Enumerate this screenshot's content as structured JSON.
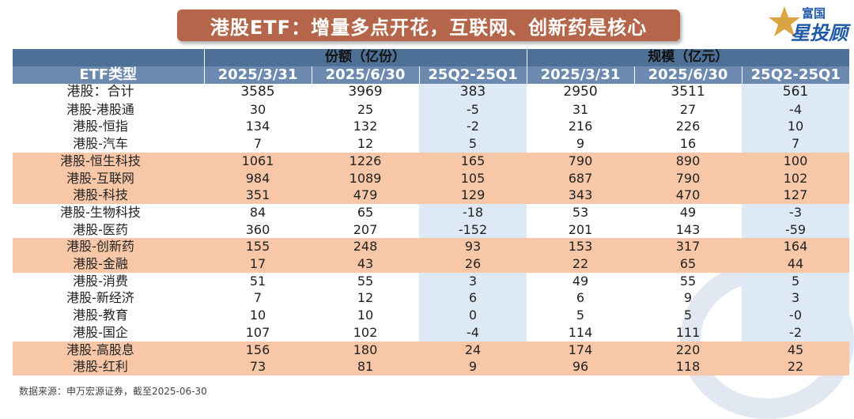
{
  "title": "港股ETF：增量多点开花，互联网、创新药是核心",
  "logo": {
    "line1": "富国",
    "line2": "星投顾"
  },
  "table": {
    "type_header": "ETF类型",
    "group_headers": [
      "份额（亿份）",
      "规模（亿元）"
    ],
    "sub_headers": [
      "2025/3/31",
      "2025/6/30",
      "25Q2-25Q1",
      "2025/3/31",
      "2025/6/30",
      "25Q2-25Q1"
    ],
    "rows": [
      {
        "label": "港股：合计",
        "values": [
          "3585",
          "3969",
          "383",
          "2950",
          "3511",
          "561"
        ],
        "highlight": false,
        "total": true
      },
      {
        "label": "港股-港股通",
        "values": [
          "30",
          "25",
          "-5",
          "31",
          "27",
          "-4"
        ],
        "highlight": false
      },
      {
        "label": "港股-恒指",
        "values": [
          "134",
          "132",
          "-2",
          "216",
          "226",
          "10"
        ],
        "highlight": false
      },
      {
        "label": "港股-汽车",
        "values": [
          "7",
          "12",
          "5",
          "9",
          "16",
          "7"
        ],
        "highlight": false
      },
      {
        "label": "港股-恒生科技",
        "values": [
          "1061",
          "1226",
          "165",
          "790",
          "890",
          "100"
        ],
        "highlight": true
      },
      {
        "label": "港股-互联网",
        "values": [
          "984",
          "1089",
          "105",
          "687",
          "790",
          "102"
        ],
        "highlight": true
      },
      {
        "label": "港股-科技",
        "values": [
          "351",
          "479",
          "129",
          "343",
          "470",
          "127"
        ],
        "highlight": true
      },
      {
        "label": "港股-生物科技",
        "values": [
          "84",
          "65",
          "-18",
          "53",
          "49",
          "-3"
        ],
        "highlight": false
      },
      {
        "label": "港股-医药",
        "values": [
          "360",
          "207",
          "-152",
          "201",
          "143",
          "-59"
        ],
        "highlight": false
      },
      {
        "label": "港股-创新药",
        "values": [
          "155",
          "248",
          "93",
          "153",
          "317",
          "164"
        ],
        "highlight": true
      },
      {
        "label": "港股-金融",
        "values": [
          "17",
          "43",
          "26",
          "22",
          "65",
          "44"
        ],
        "highlight": true
      },
      {
        "label": "港股-消费",
        "values": [
          "51",
          "55",
          "3",
          "49",
          "55",
          "5"
        ],
        "highlight": false
      },
      {
        "label": "港股-新经济",
        "values": [
          "7",
          "12",
          "6",
          "6",
          "9",
          "3"
        ],
        "highlight": false
      },
      {
        "label": "港股-教育",
        "values": [
          "10",
          "10",
          "0",
          "5",
          "5",
          "-0"
        ],
        "highlight": false
      },
      {
        "label": "港股-国企",
        "values": [
          "107",
          "102",
          "-4",
          "114",
          "111",
          "-2"
        ],
        "highlight": false
      },
      {
        "label": "港股-高股息",
        "values": [
          "156",
          "180",
          "24",
          "174",
          "220",
          "45"
        ],
        "highlight": true
      },
      {
        "label": "港股-红利",
        "values": [
          "73",
          "81",
          "9",
          "96",
          "118",
          "22"
        ],
        "highlight": true
      }
    ]
  },
  "source": "数据来源：申万宏源证券，截至2025-06-30",
  "colors": {
    "banner": "#b5664a",
    "header_dark": "#4e6f96",
    "header_light": "#6c8ab0",
    "diff_column": "#dde9f5",
    "highlight_row": "#f7c7a8"
  }
}
